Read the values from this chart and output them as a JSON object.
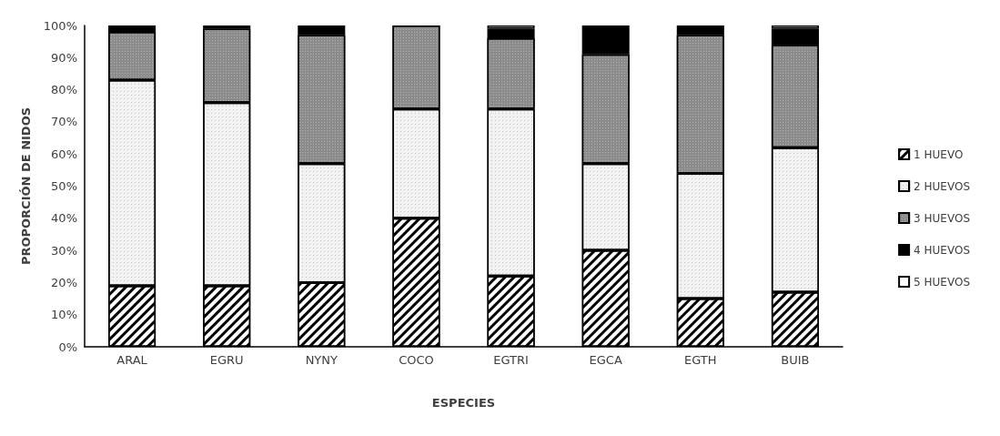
{
  "chart_data": {
    "type": "bar",
    "stacked": true,
    "xlabel": "ESPECIES",
    "ylabel": "PROPORCIÓN DE NIDOS",
    "categories": [
      "ARAL",
      "EGRU",
      "NYNY",
      "COCO",
      "EGTRI",
      "EGCA",
      "EGTH",
      "BUIB"
    ],
    "series": [
      {
        "name": "1 HUEVO",
        "color": "#ffffff",
        "values": [
          19,
          19,
          20,
          40,
          22,
          30,
          15,
          17
        ]
      },
      {
        "name": "2 HUEVOS",
        "color": "#f2f2f2",
        "values": [
          64,
          57,
          37,
          34,
          52,
          27,
          39,
          45
        ]
      },
      {
        "name": "3 HUEVOS",
        "color": "#8c8c8c",
        "values": [
          15,
          23,
          40,
          26,
          22,
          34,
          43,
          32
        ]
      },
      {
        "name": "4 HUEVOS",
        "color": "#000000",
        "values": [
          2,
          1,
          3,
          0,
          3,
          9,
          3,
          5
        ]
      },
      {
        "name": "5 HUEVOS",
        "color": "#ffffff",
        "values": [
          0,
          0,
          0,
          0,
          1,
          0,
          0,
          1
        ]
      }
    ],
    "ylim": [
      0,
      100
    ],
    "yticks": [
      {
        "value": 0,
        "label": "0%"
      },
      {
        "value": 10,
        "label": "10%"
      },
      {
        "value": 20,
        "label": "20%"
      },
      {
        "value": 30,
        "label": "30%"
      },
      {
        "value": 40,
        "label": "40%"
      },
      {
        "value": 50,
        "label": "50%"
      },
      {
        "value": 60,
        "label": "60%"
      },
      {
        "value": 70,
        "label": "70%"
      },
      {
        "value": 80,
        "label": "80%"
      },
      {
        "value": 90,
        "label": "90%"
      },
      {
        "value": 100,
        "label": "100%"
      }
    ],
    "grid": false,
    "legend": "right"
  }
}
